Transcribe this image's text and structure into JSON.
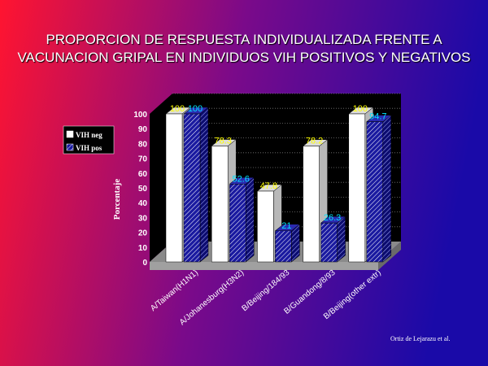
{
  "slide": {
    "title_line1": "PROPORCION DE RESPUESTA INDIVIDUALIZADA FRENTE A",
    "title_line2": "VACUNACION GRIPAL EN INDIVIDUOS VIH POSITIVOS Y NEGATIVOS",
    "credit": "Ortiz de Lejarazu et al."
  },
  "colors": {
    "bg_left": "#ff1430",
    "bg_mid": "#7a0a8a",
    "bg_right": "#1a0aa8",
    "bar_neg": "#ffffff",
    "bar_pos": "#1a1aa0",
    "label_neg": "#ffff00",
    "label_pos": "#00e5ff",
    "plot_bg": "#000000"
  },
  "chart_data": {
    "type": "bar",
    "title": "",
    "xlabel": "",
    "ylabel": "Porcentaje",
    "ylim": [
      0,
      100
    ],
    "yticks": [
      "0",
      "10",
      "20",
      "30",
      "40",
      "50",
      "60",
      "70",
      "80",
      "90",
      "100"
    ],
    "categories": [
      "A/Taiwan(H1N1)",
      "A/Johanesburg(H3N2)",
      "B/Beijing/184/93",
      "B/Guandong/8/93",
      "B/Beijing(other extr)"
    ],
    "series": [
      {
        "name": "VIH neg",
        "values": [
          100,
          78.3,
          47.8,
          78.2,
          100
        ],
        "labels": [
          "100",
          "78.3",
          "47.8",
          "78.2",
          "100"
        ]
      },
      {
        "name": "VIH pos",
        "values": [
          100,
          52.6,
          21,
          26.3,
          94.7
        ],
        "labels": [
          "100",
          "52.6",
          "21",
          "26.3",
          "94.7"
        ]
      }
    ],
    "legend_position": "left",
    "grid": true,
    "style": "3d"
  }
}
